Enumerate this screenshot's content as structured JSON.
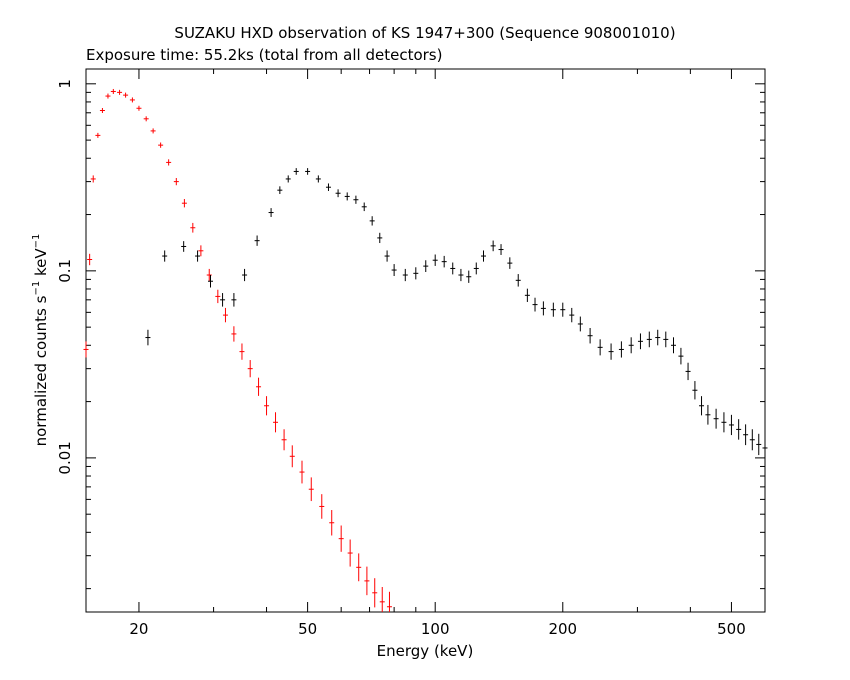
{
  "chart_data": {
    "type": "scatter",
    "title": "SUZAKU HXD observation of KS 1947+300 (Sequence 908001010)",
    "subtitle": "Exposure time: 55.2ks (total from all detectors)",
    "xlabel": "Energy (keV)",
    "ylabel_parts": {
      "prefix": "normalized counts s",
      "exp1": "−1",
      "middle": " keV",
      "exp2": "−1"
    },
    "x_scale": "log",
    "y_scale": "log",
    "xlim": [
      15,
      600
    ],
    "ylim": [
      0.0015,
      1.2
    ],
    "x_ticks": [
      20,
      50,
      100,
      200,
      500
    ],
    "y_ticks": [
      0.01,
      0.1,
      1
    ],
    "x_tick_labels": [
      "20",
      "50",
      "100",
      "200",
      "500"
    ],
    "y_tick_labels": [
      "0.01",
      "0.1",
      "1"
    ],
    "grid": false,
    "series": [
      {
        "color": "#ff0000",
        "points": [
          [
            15.0,
            0.038
          ],
          [
            15.3,
            0.115
          ],
          [
            15.6,
            0.31
          ],
          [
            16.0,
            0.53
          ],
          [
            16.4,
            0.72
          ],
          [
            16.9,
            0.86
          ],
          [
            17.4,
            0.91
          ],
          [
            18.0,
            0.9
          ],
          [
            18.6,
            0.87
          ],
          [
            19.3,
            0.82
          ],
          [
            20.0,
            0.74
          ],
          [
            20.8,
            0.65
          ],
          [
            21.6,
            0.56
          ],
          [
            22.5,
            0.47
          ],
          [
            23.5,
            0.38
          ],
          [
            24.5,
            0.3
          ],
          [
            25.6,
            0.23
          ],
          [
            26.8,
            0.17
          ],
          [
            28.0,
            0.128
          ],
          [
            29.3,
            0.095
          ],
          [
            30.7,
            0.073
          ],
          [
            32.0,
            0.058
          ],
          [
            33.5,
            0.046
          ],
          [
            35.0,
            0.037
          ],
          [
            36.6,
            0.03
          ],
          [
            38.3,
            0.024
          ],
          [
            40.0,
            0.019
          ],
          [
            42.0,
            0.0155
          ],
          [
            44.0,
            0.0125
          ],
          [
            46.0,
            0.0102
          ],
          [
            48.5,
            0.0084
          ],
          [
            51.0,
            0.0068
          ],
          [
            54.0,
            0.0055
          ],
          [
            57.0,
            0.0045
          ],
          [
            60.0,
            0.0037
          ],
          [
            63.0,
            0.0031
          ],
          [
            66.0,
            0.0026
          ],
          [
            69.0,
            0.0022
          ],
          [
            72.0,
            0.0019
          ],
          [
            75.0,
            0.0017
          ],
          [
            78.0,
            0.0016
          ]
        ]
      },
      {
        "color": "#000000",
        "points": [
          [
            21.0,
            0.044
          ],
          [
            23.0,
            0.12
          ],
          [
            25.5,
            0.135
          ],
          [
            27.5,
            0.12
          ],
          [
            29.5,
            0.088
          ],
          [
            31.5,
            0.07
          ],
          [
            33.5,
            0.07
          ],
          [
            35.5,
            0.095
          ],
          [
            38.0,
            0.145
          ],
          [
            41.0,
            0.205
          ],
          [
            43.0,
            0.27
          ],
          [
            45.0,
            0.31
          ],
          [
            47.0,
            0.34
          ],
          [
            50.0,
            0.34
          ],
          [
            53.0,
            0.31
          ],
          [
            56.0,
            0.28
          ],
          [
            59.0,
            0.26
          ],
          [
            62.0,
            0.25
          ],
          [
            65.0,
            0.24
          ],
          [
            68.0,
            0.22
          ],
          [
            71.0,
            0.185
          ],
          [
            74.0,
            0.15
          ],
          [
            77.0,
            0.12
          ],
          [
            80.0,
            0.101
          ],
          [
            85.0,
            0.095
          ],
          [
            90.0,
            0.097
          ],
          [
            95.0,
            0.106
          ],
          [
            100.0,
            0.114
          ],
          [
            105.0,
            0.112
          ],
          [
            110.0,
            0.103
          ],
          [
            115.0,
            0.095
          ],
          [
            120.0,
            0.093
          ],
          [
            125.0,
            0.103
          ],
          [
            130.0,
            0.12
          ],
          [
            137.0,
            0.136
          ],
          [
            143.0,
            0.13
          ],
          [
            150.0,
            0.11
          ],
          [
            157.0,
            0.089
          ],
          [
            165.0,
            0.074
          ],
          [
            172.0,
            0.066
          ],
          [
            180.0,
            0.063
          ],
          [
            190.0,
            0.062
          ],
          [
            200.0,
            0.062
          ],
          [
            210.0,
            0.058
          ],
          [
            220.0,
            0.052
          ],
          [
            232.0,
            0.045
          ],
          [
            245.0,
            0.039
          ],
          [
            260.0,
            0.037
          ],
          [
            275.0,
            0.038
          ],
          [
            290.0,
            0.04
          ],
          [
            305.0,
            0.042
          ],
          [
            320.0,
            0.043
          ],
          [
            335.0,
            0.044
          ],
          [
            350.0,
            0.043
          ],
          [
            365.0,
            0.04
          ],
          [
            380.0,
            0.035
          ],
          [
            395.0,
            0.029
          ],
          [
            410.0,
            0.023
          ],
          [
            425.0,
            0.019
          ],
          [
            440.0,
            0.017
          ],
          [
            460.0,
            0.0162
          ],
          [
            480.0,
            0.0155
          ],
          [
            500.0,
            0.015
          ],
          [
            520.0,
            0.0142
          ],
          [
            540.0,
            0.0133
          ],
          [
            560.0,
            0.0125
          ],
          [
            580.0,
            0.0118
          ],
          [
            600.0,
            0.0113
          ]
        ]
      }
    ]
  }
}
